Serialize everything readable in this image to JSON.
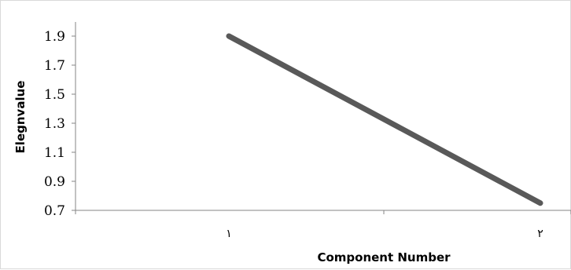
{
  "chart_data": {
    "type": "line",
    "x": [
      "١",
      "٢"
    ],
    "series": [
      {
        "values": [
          1.9,
          0.75
        ],
        "color": "#595959"
      }
    ],
    "ylabel": "Elegnvalue",
    "xlabel": "Component Number",
    "ylim": [
      0.7,
      1.9
    ],
    "yticks": [
      "1.9",
      "1.7",
      "1.5",
      "1.3",
      "1.1",
      "0.9",
      "0.7"
    ],
    "grid": false,
    "legend": "none"
  }
}
